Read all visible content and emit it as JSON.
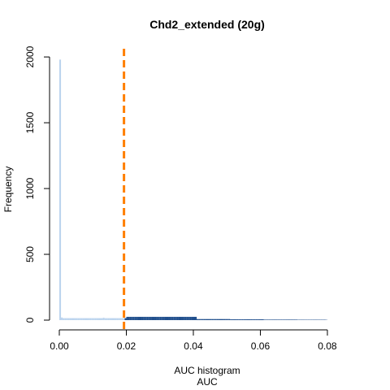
{
  "chart_data": {
    "type": "bar",
    "title": "Chd2_extended (20g)",
    "xlabel": "AUC histogram",
    "xlabel2": "AUC",
    "ylabel": "Frequency",
    "xlim": [
      0,
      0.0885
    ],
    "ylim": [
      0,
      2050
    ],
    "xticks": [
      "0.00",
      "0.02",
      "0.04",
      "0.06",
      "0.08"
    ],
    "xtick_values": [
      0,
      0.02,
      0.04,
      0.06,
      0.08
    ],
    "yticks": [
      "0",
      "500",
      "1000",
      "1500",
      "2000"
    ],
    "ytick_values": [
      0,
      500,
      1000,
      1500,
      2000
    ],
    "threshold": 0.0193,
    "colors": {
      "below_threshold": "#bcd4ee",
      "above_threshold": "#1f4e8c",
      "threshold_line": "#ff7f00",
      "axis": "#000000"
    },
    "bin_width": 0.0005,
    "bin_start": 0,
    "values": [
      1980,
      20,
      15,
      15,
      15,
      15,
      15,
      15,
      15,
      15,
      15,
      15,
      15,
      15,
      15,
      15,
      15,
      15,
      15,
      15,
      15,
      15,
      15,
      15,
      15,
      15,
      18,
      15,
      15,
      15,
      15,
      15,
      15,
      15,
      15,
      15,
      15,
      15,
      15,
      15,
      25,
      25,
      25,
      25,
      25,
      25,
      25,
      25,
      25,
      25,
      25,
      25,
      25,
      25,
      25,
      25,
      25,
      25,
      25,
      25,
      25,
      25,
      25,
      25,
      25,
      25,
      25,
      25,
      25,
      25,
      25,
      25,
      25,
      25,
      25,
      25,
      25,
      25,
      25,
      25,
      25,
      25,
      8,
      8,
      8,
      8,
      8,
      8,
      8,
      8,
      8,
      8,
      8,
      8,
      8,
      8,
      8,
      8,
      8,
      8,
      8,
      8,
      6,
      6,
      6,
      6,
      6,
      6,
      6,
      6,
      6,
      6,
      6,
      6,
      6,
      6,
      6,
      6,
      6,
      6,
      6,
      6,
      4,
      4,
      4,
      4,
      4,
      4,
      4,
      4,
      4,
      4,
      4,
      4,
      4,
      4,
      4,
      4,
      4,
      4,
      4,
      4,
      3,
      3,
      3,
      3,
      3,
      3,
      3,
      3,
      3,
      3,
      3,
      3,
      3,
      3,
      3,
      3,
      3,
      2
    ],
    "legend": "none",
    "grid": false
  }
}
